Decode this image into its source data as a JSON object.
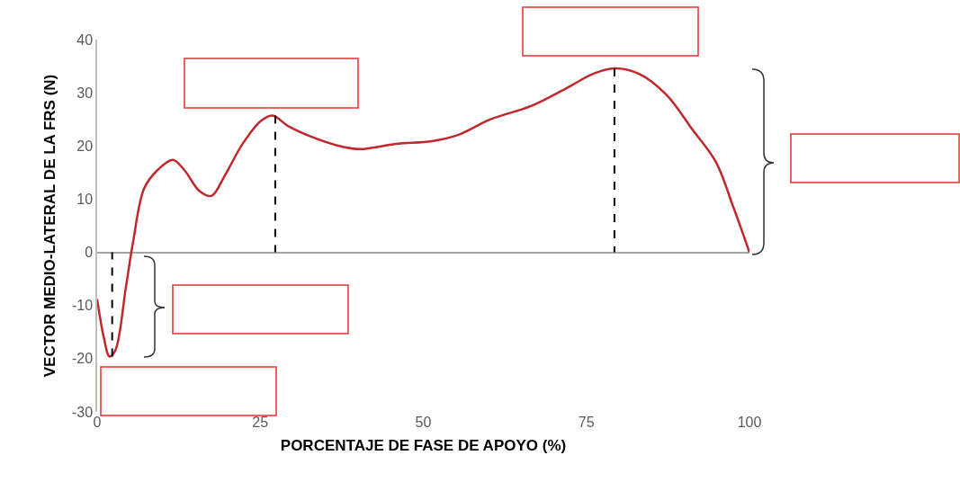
{
  "chart_data": {
    "type": "line",
    "xlabel": "PORCENTAJE DE FASE DE APOYO (%)",
    "ylabel": "VECTOR MEDIO-LATERAL DE LA FRS (N)",
    "xlim": [
      0,
      100
    ],
    "ylim": [
      -30,
      40
    ],
    "xticks": [
      0,
      25,
      50,
      75,
      100
    ],
    "yticks": [
      -30,
      -20,
      -10,
      0,
      10,
      20,
      30,
      40
    ],
    "marker": "none",
    "series": [
      {
        "color": "#c0282d",
        "line_style": "solid",
        "x": [
          0,
          1,
          1.9,
          2.8,
          4.4,
          5.5,
          7.2,
          9.2,
          11.6,
          13.4,
          15.7,
          17.5,
          19.6,
          22.3,
          25.1,
          26.9,
          29.2,
          32.7,
          36.8,
          40.3,
          45.8,
          51.3,
          55.4,
          60.3,
          66.5,
          72,
          76.1,
          79.3,
          83,
          87.2,
          91.3,
          94.8,
          97.5,
          100
        ],
        "values": [
          -8.8,
          -15.9,
          -19.6,
          -18.4,
          -6.6,
          1.9,
          12,
          15.4,
          17.4,
          15.4,
          11.5,
          10.6,
          14.5,
          20.4,
          24.7,
          25.7,
          23.8,
          21.8,
          20.1,
          19.4,
          20.4,
          20.9,
          22.1,
          25,
          27.5,
          30.9,
          33.6,
          34.6,
          33.6,
          29.7,
          23,
          17.1,
          8.6,
          0
        ]
      },
      {
        "color": "#000000",
        "line_style": "dashed",
        "x": [
          2.3,
          2.3
        ],
        "values": [
          -19.6,
          0
        ]
      },
      {
        "color": "#000000",
        "line_style": "dashed",
        "x": [
          27.3,
          27.3
        ],
        "values": [
          25.7,
          0
        ]
      },
      {
        "color": "#000000",
        "line_style": "dashed",
        "x": [
          79.3,
          79.3
        ],
        "values": [
          34.6,
          0
        ]
      }
    ]
  }
}
